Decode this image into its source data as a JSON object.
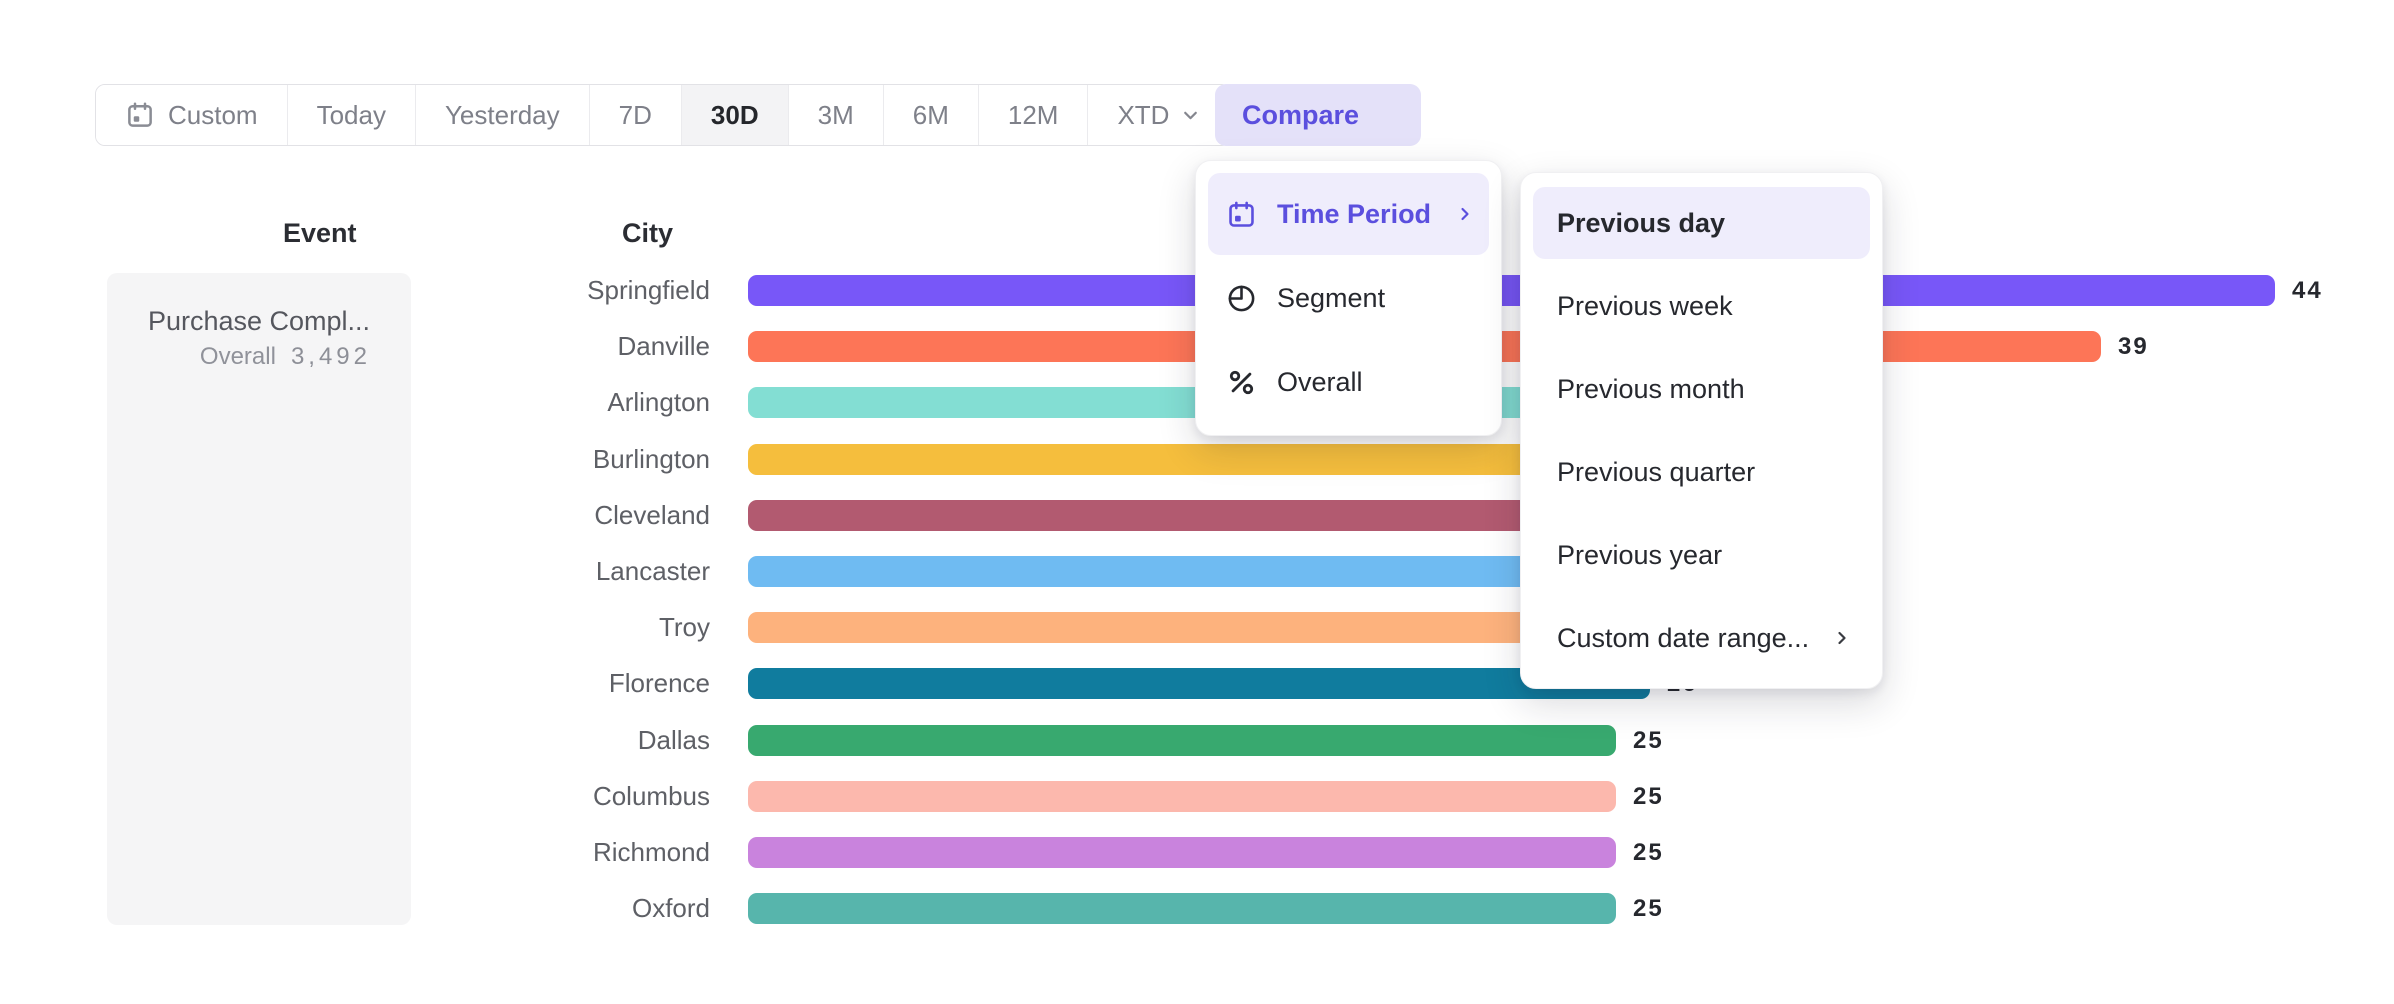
{
  "toolbar": {
    "date_buttons": [
      {
        "label": "Custom",
        "icon": "calendar-icon"
      },
      {
        "label": "Today"
      },
      {
        "label": "Yesterday"
      },
      {
        "label": "7D"
      },
      {
        "label": "30D",
        "active": true
      },
      {
        "label": "3M"
      },
      {
        "label": "6M"
      },
      {
        "label": "12M"
      },
      {
        "label": "XTD",
        "chevron": true
      }
    ],
    "compare_label": "Compare"
  },
  "compare_menu": {
    "items": [
      {
        "label": "Time Period",
        "icon": "calendar-icon",
        "active": true,
        "submenu_arrow": true
      },
      {
        "label": "Segment",
        "icon": "segment-icon"
      },
      {
        "label": "Overall",
        "icon": "percent-icon"
      }
    ]
  },
  "time_period_submenu": {
    "items": [
      {
        "label": "Previous day",
        "active": true
      },
      {
        "label": "Previous week"
      },
      {
        "label": "Previous month"
      },
      {
        "label": "Previous quarter"
      },
      {
        "label": "Previous year"
      },
      {
        "label": "Custom date range...",
        "submenu_arrow": true
      }
    ]
  },
  "event_column": {
    "header": "Event",
    "event_name": "Purchase Compl...",
    "stat_label": "Overall",
    "stat_value": "3,492"
  },
  "chart_data": {
    "type": "bar",
    "orientation": "horizontal",
    "group_header": "City",
    "categories": [
      "Springfield",
      "Danville",
      "Arlington",
      "Burlington",
      "Cleveland",
      "Lancaster",
      "Troy",
      "Florence",
      "Dallas",
      "Columbus",
      "Richmond",
      "Oxford"
    ],
    "values": [
      44,
      39,
      31,
      30,
      29,
      28,
      27,
      26,
      25,
      25,
      25,
      25
    ],
    "labeled_values_visible_on_screen": {
      "Springfield": 44,
      "Danville": 39,
      "Dallas": 25,
      "Columbus": 25,
      "Richmond": 25,
      "Oxford": 25
    },
    "estimated_values_hidden_behind_menu": [
      "Arlington",
      "Burlington",
      "Cleveland",
      "Lancaster",
      "Troy",
      "Florence"
    ],
    "colors": [
      "#7857F8",
      "#FD7557",
      "#83DED3",
      "#F5BE3D",
      "#B25A70",
      "#6FBBF2",
      "#FDB27D",
      "#107C9E",
      "#38A96F",
      "#FCB8AD",
      "#C983DD",
      "#57B5AC"
    ],
    "title": "",
    "xlabel": "",
    "ylabel": "",
    "legend": false,
    "grid": false,
    "accent_color": "#5B4FDE"
  }
}
